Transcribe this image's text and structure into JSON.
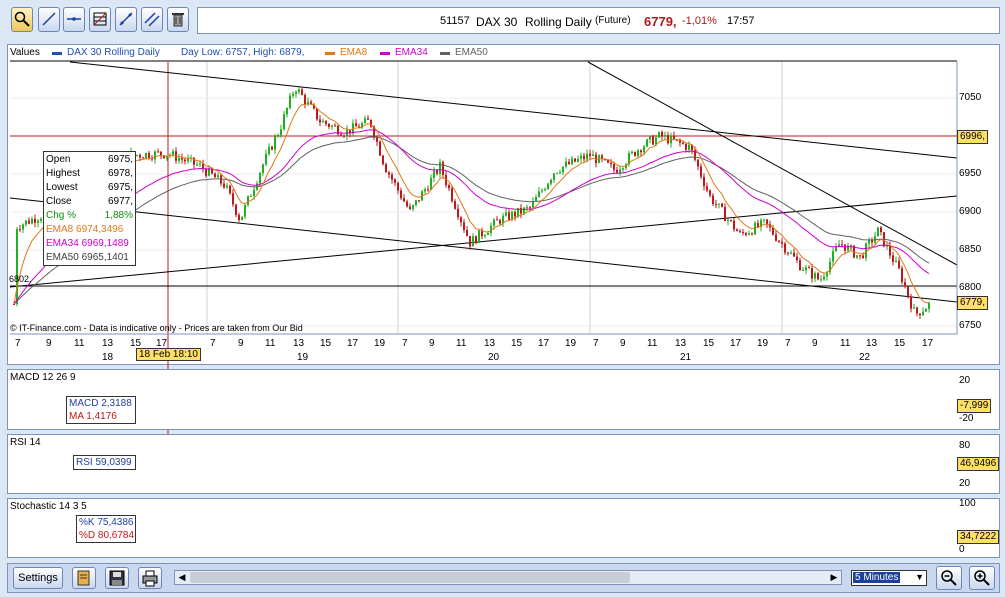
{
  "toolbar": {
    "tools": [
      "zoom-tool-icon",
      "line-tool-icon",
      "horizontal-line-icon",
      "fibonacci-icon",
      "draw-icon",
      "channel-icon",
      "trash-icon"
    ]
  },
  "title": {
    "code": "51157",
    "name": "DAX 30",
    "period": "Rolling Daily",
    "type": "(Future)",
    "price": "6779,",
    "change": "-1,01%",
    "time": "17:57"
  },
  "legend": {
    "values_label": "Values",
    "series": "DAX 30  Rolling Daily",
    "day_range": "Day Low: 6757, High: 6879,",
    "ema8": "EMA8",
    "ema34": "EMA34",
    "ema50": "EMA50"
  },
  "colors": {
    "ema8": "#e07818",
    "ema34": "#d000d0",
    "ema50": "#606060",
    "up": "#21b021",
    "down": "#c01818",
    "macd": "#4060c0",
    "rsi": "#3050b0"
  },
  "ohlc_box": {
    "rows": [
      {
        "label": "Open",
        "value": "6975,"
      },
      {
        "label": "Highest",
        "value": "6978,"
      },
      {
        "label": "Lowest",
        "value": "6975,"
      },
      {
        "label": "Close",
        "value": "6977,"
      },
      {
        "label": "Chg %",
        "value": "1,88%"
      }
    ],
    "ema8": "EMA8  6974,3496",
    "ema34": "EMA34 6969,1489",
    "ema50": "EMA50 6965,1401"
  },
  "price_axis": [
    "7050",
    "6950",
    "6900",
    "6850",
    "6800",
    "6750"
  ],
  "price_badges": {
    "crosshair": "6996,",
    "last": "6779,"
  },
  "level_label": "6802,",
  "copyright": "© IT-Finance.com - Data is indicative only - Prices are taken from Our Bid",
  "time_axis": {
    "hours": [
      "7",
      "9",
      "11",
      "13",
      "15",
      "17",
      "7",
      "9",
      "11",
      "13",
      "15",
      "17",
      "19",
      "7",
      "9",
      "11",
      "13",
      "15",
      "17",
      "19",
      "7",
      "9",
      "11",
      "13",
      "15",
      "17",
      "19",
      "7",
      "9",
      "11",
      "13",
      "15",
      "17",
      "19",
      "7",
      "9",
      "11",
      "13",
      "15",
      "17"
    ],
    "days": [
      "18",
      "19",
      "20",
      "21",
      "22"
    ],
    "cursor": "18 Feb 18:10"
  },
  "macd": {
    "title": "MACD 12 26 9",
    "macd": "MACD 2,3188",
    "ma": "MA     1,4176",
    "axis": [
      "20",
      "-20"
    ],
    "badge": "-7,999"
  },
  "rsi": {
    "title": "RSI 14",
    "value": "RSI 59,0399",
    "axis": [
      "80",
      "20"
    ],
    "badge": "46,9496"
  },
  "stoch": {
    "title": "Stochastic 14 3 5",
    "k": "%K 75,4386",
    "d": "%D 80,6784",
    "axis": [
      "100",
      "0"
    ],
    "badge": "34,7222"
  },
  "bottom_bar": {
    "settings": "Settings",
    "interval": "5 Minutes"
  }
}
